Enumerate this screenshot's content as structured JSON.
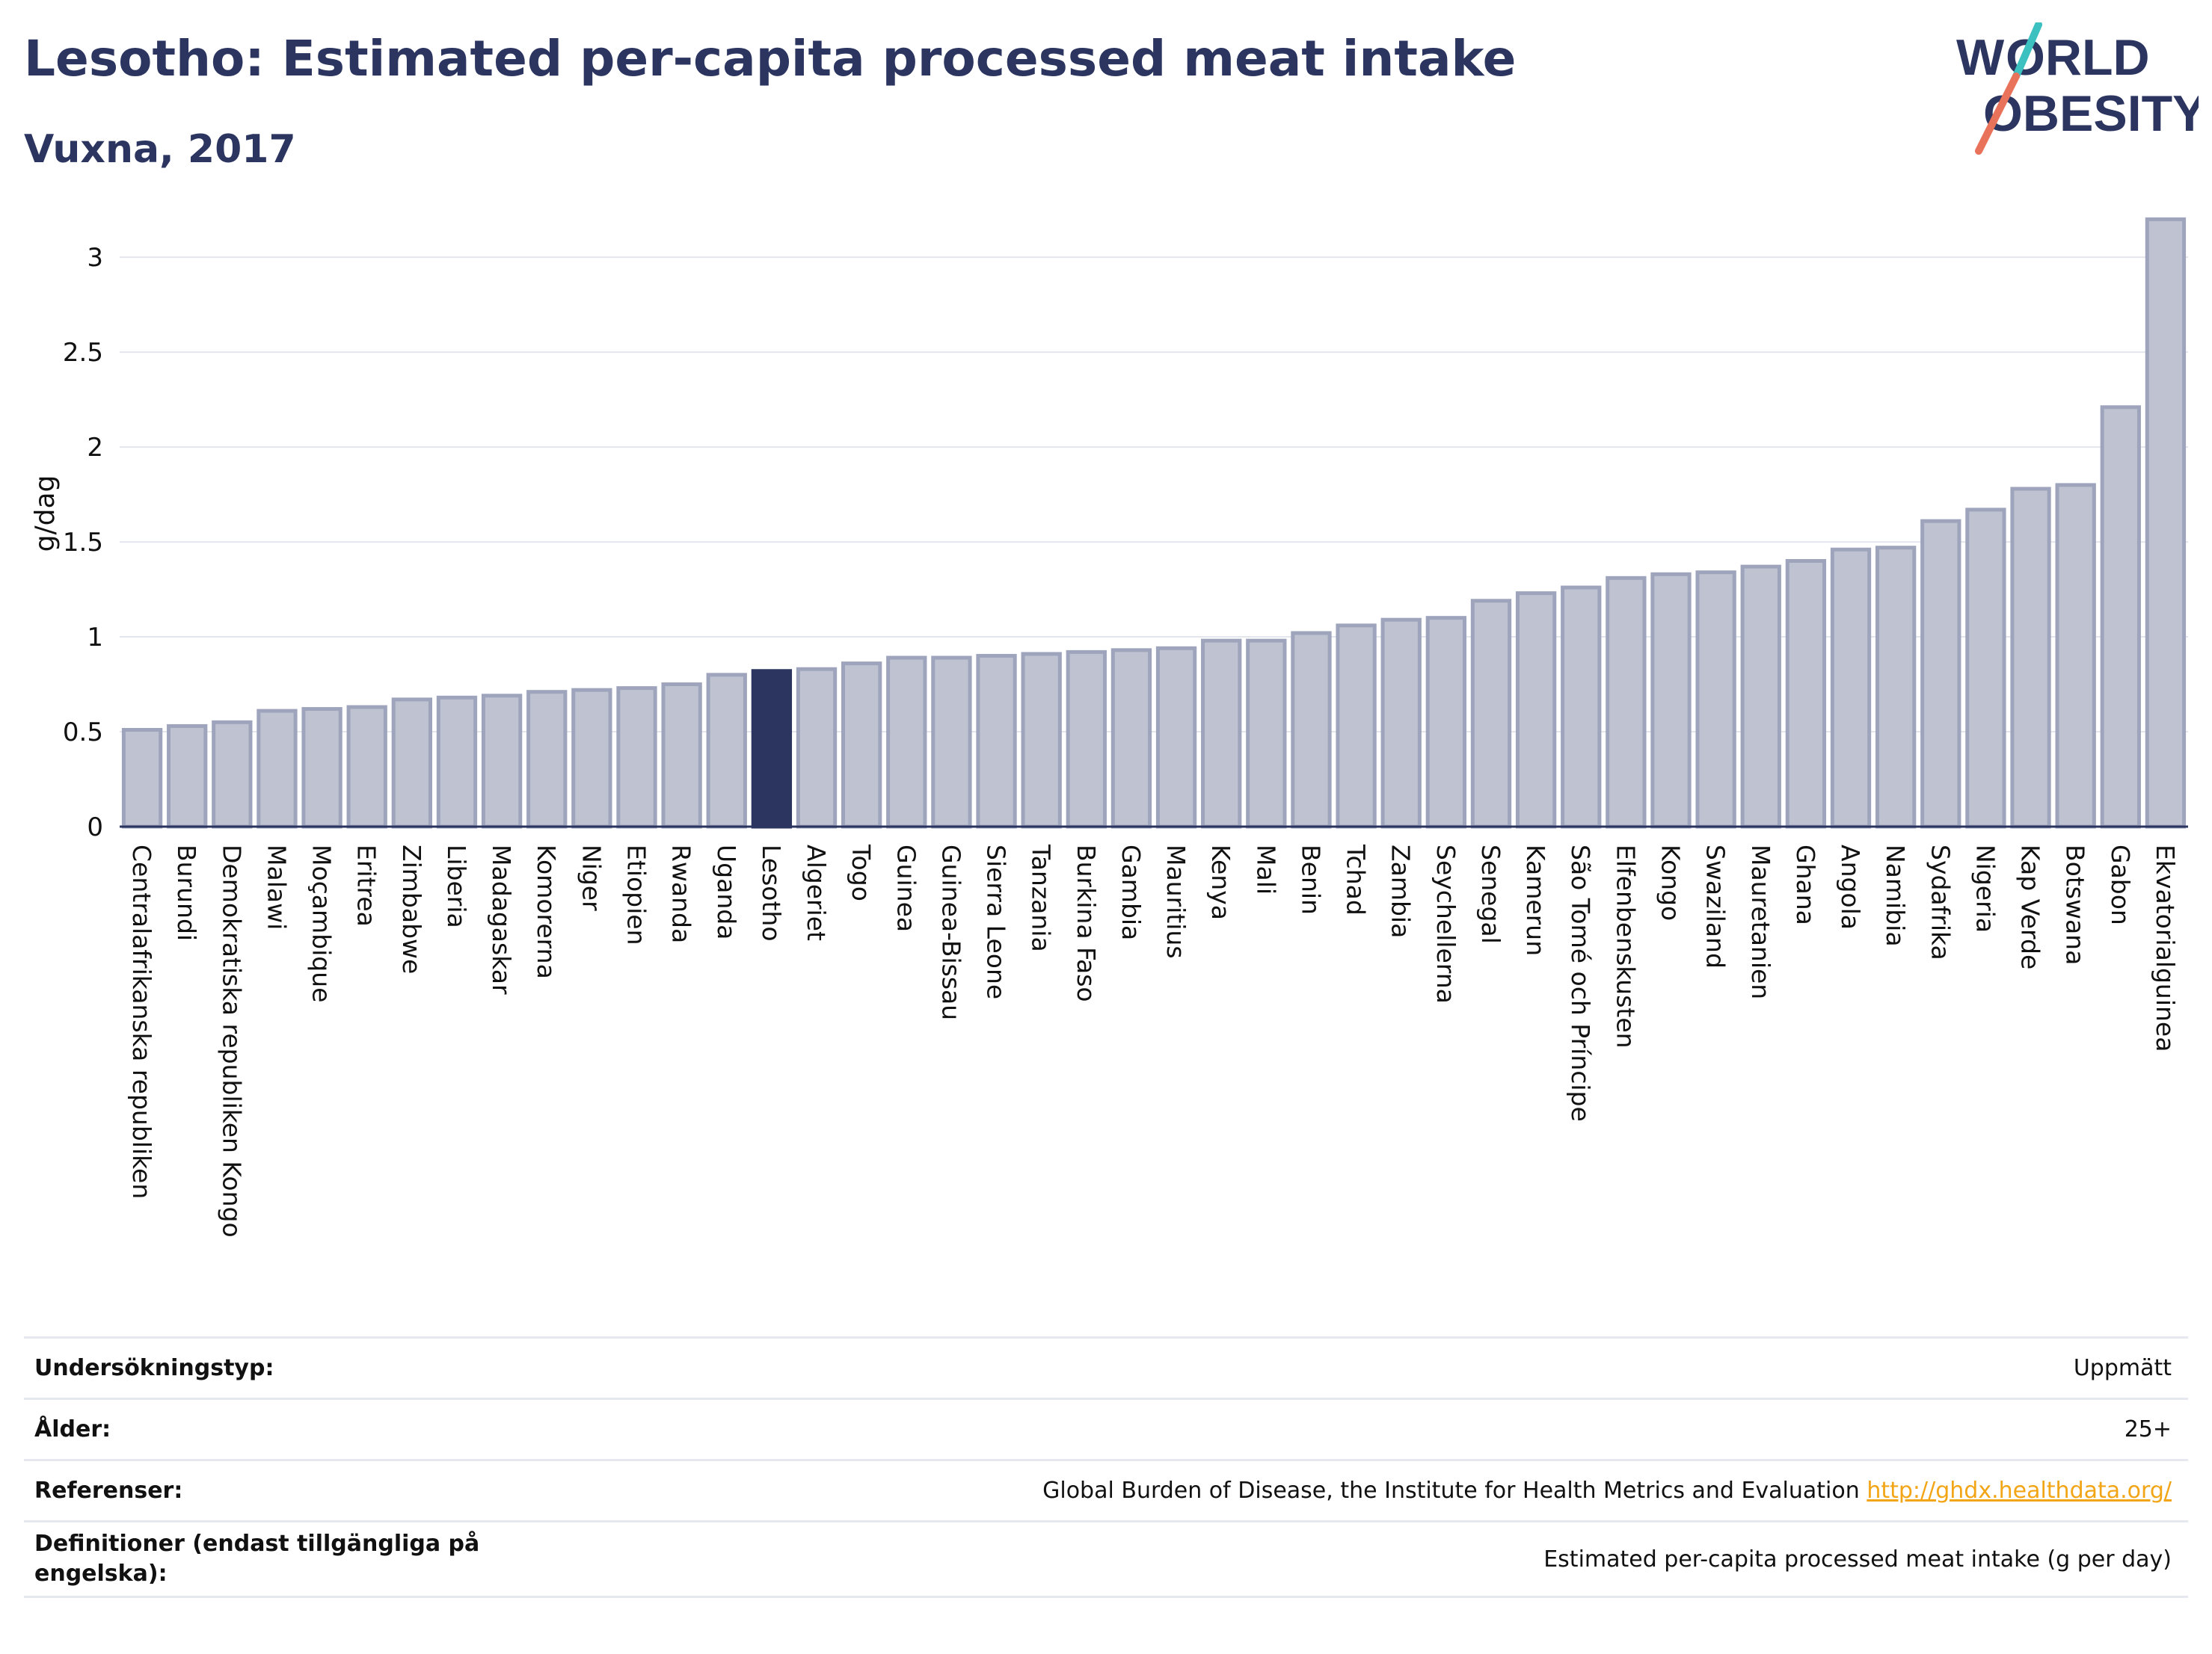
{
  "header": {
    "title": "Lesotho: Estimated per-capita processed meat intake",
    "subtitle": "Vuxna, 2017",
    "logo_text": "WORLD OBESITY"
  },
  "colors": {
    "accent": "#2b3560",
    "bar": "#bfc3d1",
    "bar_stroke": "#9ea4bc",
    "logo_teal": "#3cc0c0",
    "logo_coral": "#e8735a",
    "link": "#f2a516"
  },
  "chart_data": {
    "type": "bar",
    "ylabel": "g/dag",
    "xlabel": "",
    "ylim": [
      0,
      3.3
    ],
    "yticks": [
      0,
      0.5,
      1,
      1.5,
      2,
      2.5,
      3
    ],
    "ytick_labels": [
      "0",
      "0.5",
      "1",
      "1.5",
      "2",
      "2.5",
      "3"
    ],
    "grid": true,
    "highlight": "Lesotho",
    "categories": [
      "Centralafrikanska republiken",
      "Burundi",
      "Demokratiska republiken Kongo",
      "Malawi",
      "Moçambique",
      "Eritrea",
      "Zimbabwe",
      "Liberia",
      "Madagaskar",
      "Komorerna",
      "Niger",
      "Etiopien",
      "Rwanda",
      "Uganda",
      "Lesotho",
      "Algeriet",
      "Togo",
      "Guinea",
      "Guinea-Bissau",
      "Sierra Leone",
      "Tanzania",
      "Burkina Faso",
      "Gambia",
      "Mauritius",
      "Kenya",
      "Mali",
      "Benin",
      "Tchad",
      "Zambia",
      "Seychellerna",
      "Senegal",
      "Kamerun",
      "São Tomé och Príncipe",
      "Elfenbenskusten",
      "Kongo",
      "Swaziland",
      "Mauretanien",
      "Ghana",
      "Angola",
      "Namibia",
      "Sydafrika",
      "Nigeria",
      "Kap Verde",
      "Botswana",
      "Gabon",
      "Ekvatorialguinea"
    ],
    "values": [
      0.51,
      0.53,
      0.55,
      0.61,
      0.62,
      0.63,
      0.67,
      0.68,
      0.69,
      0.71,
      0.72,
      0.73,
      0.75,
      0.8,
      0.82,
      0.83,
      0.86,
      0.89,
      0.89,
      0.9,
      0.91,
      0.92,
      0.93,
      0.94,
      0.98,
      0.98,
      1.02,
      1.06,
      1.09,
      1.1,
      1.19,
      1.23,
      1.26,
      1.31,
      1.33,
      1.34,
      1.37,
      1.4,
      1.46,
      1.47,
      1.61,
      1.67,
      1.78,
      1.8,
      2.21,
      3.2
    ]
  },
  "info": [
    {
      "label": "Undersökningstyp:",
      "value": "Uppmätt"
    },
    {
      "label": "Ålder:",
      "value": "25+"
    },
    {
      "label": "Referenser:",
      "value": "Global Burden of Disease, the Institute for Health Metrics and Evaluation",
      "link": "http://ghdx.healthdata.org/"
    },
    {
      "label": "Definitioner (endast tillgängliga på engelska):",
      "value": "Estimated per-capita processed meat intake (g per day)"
    }
  ]
}
